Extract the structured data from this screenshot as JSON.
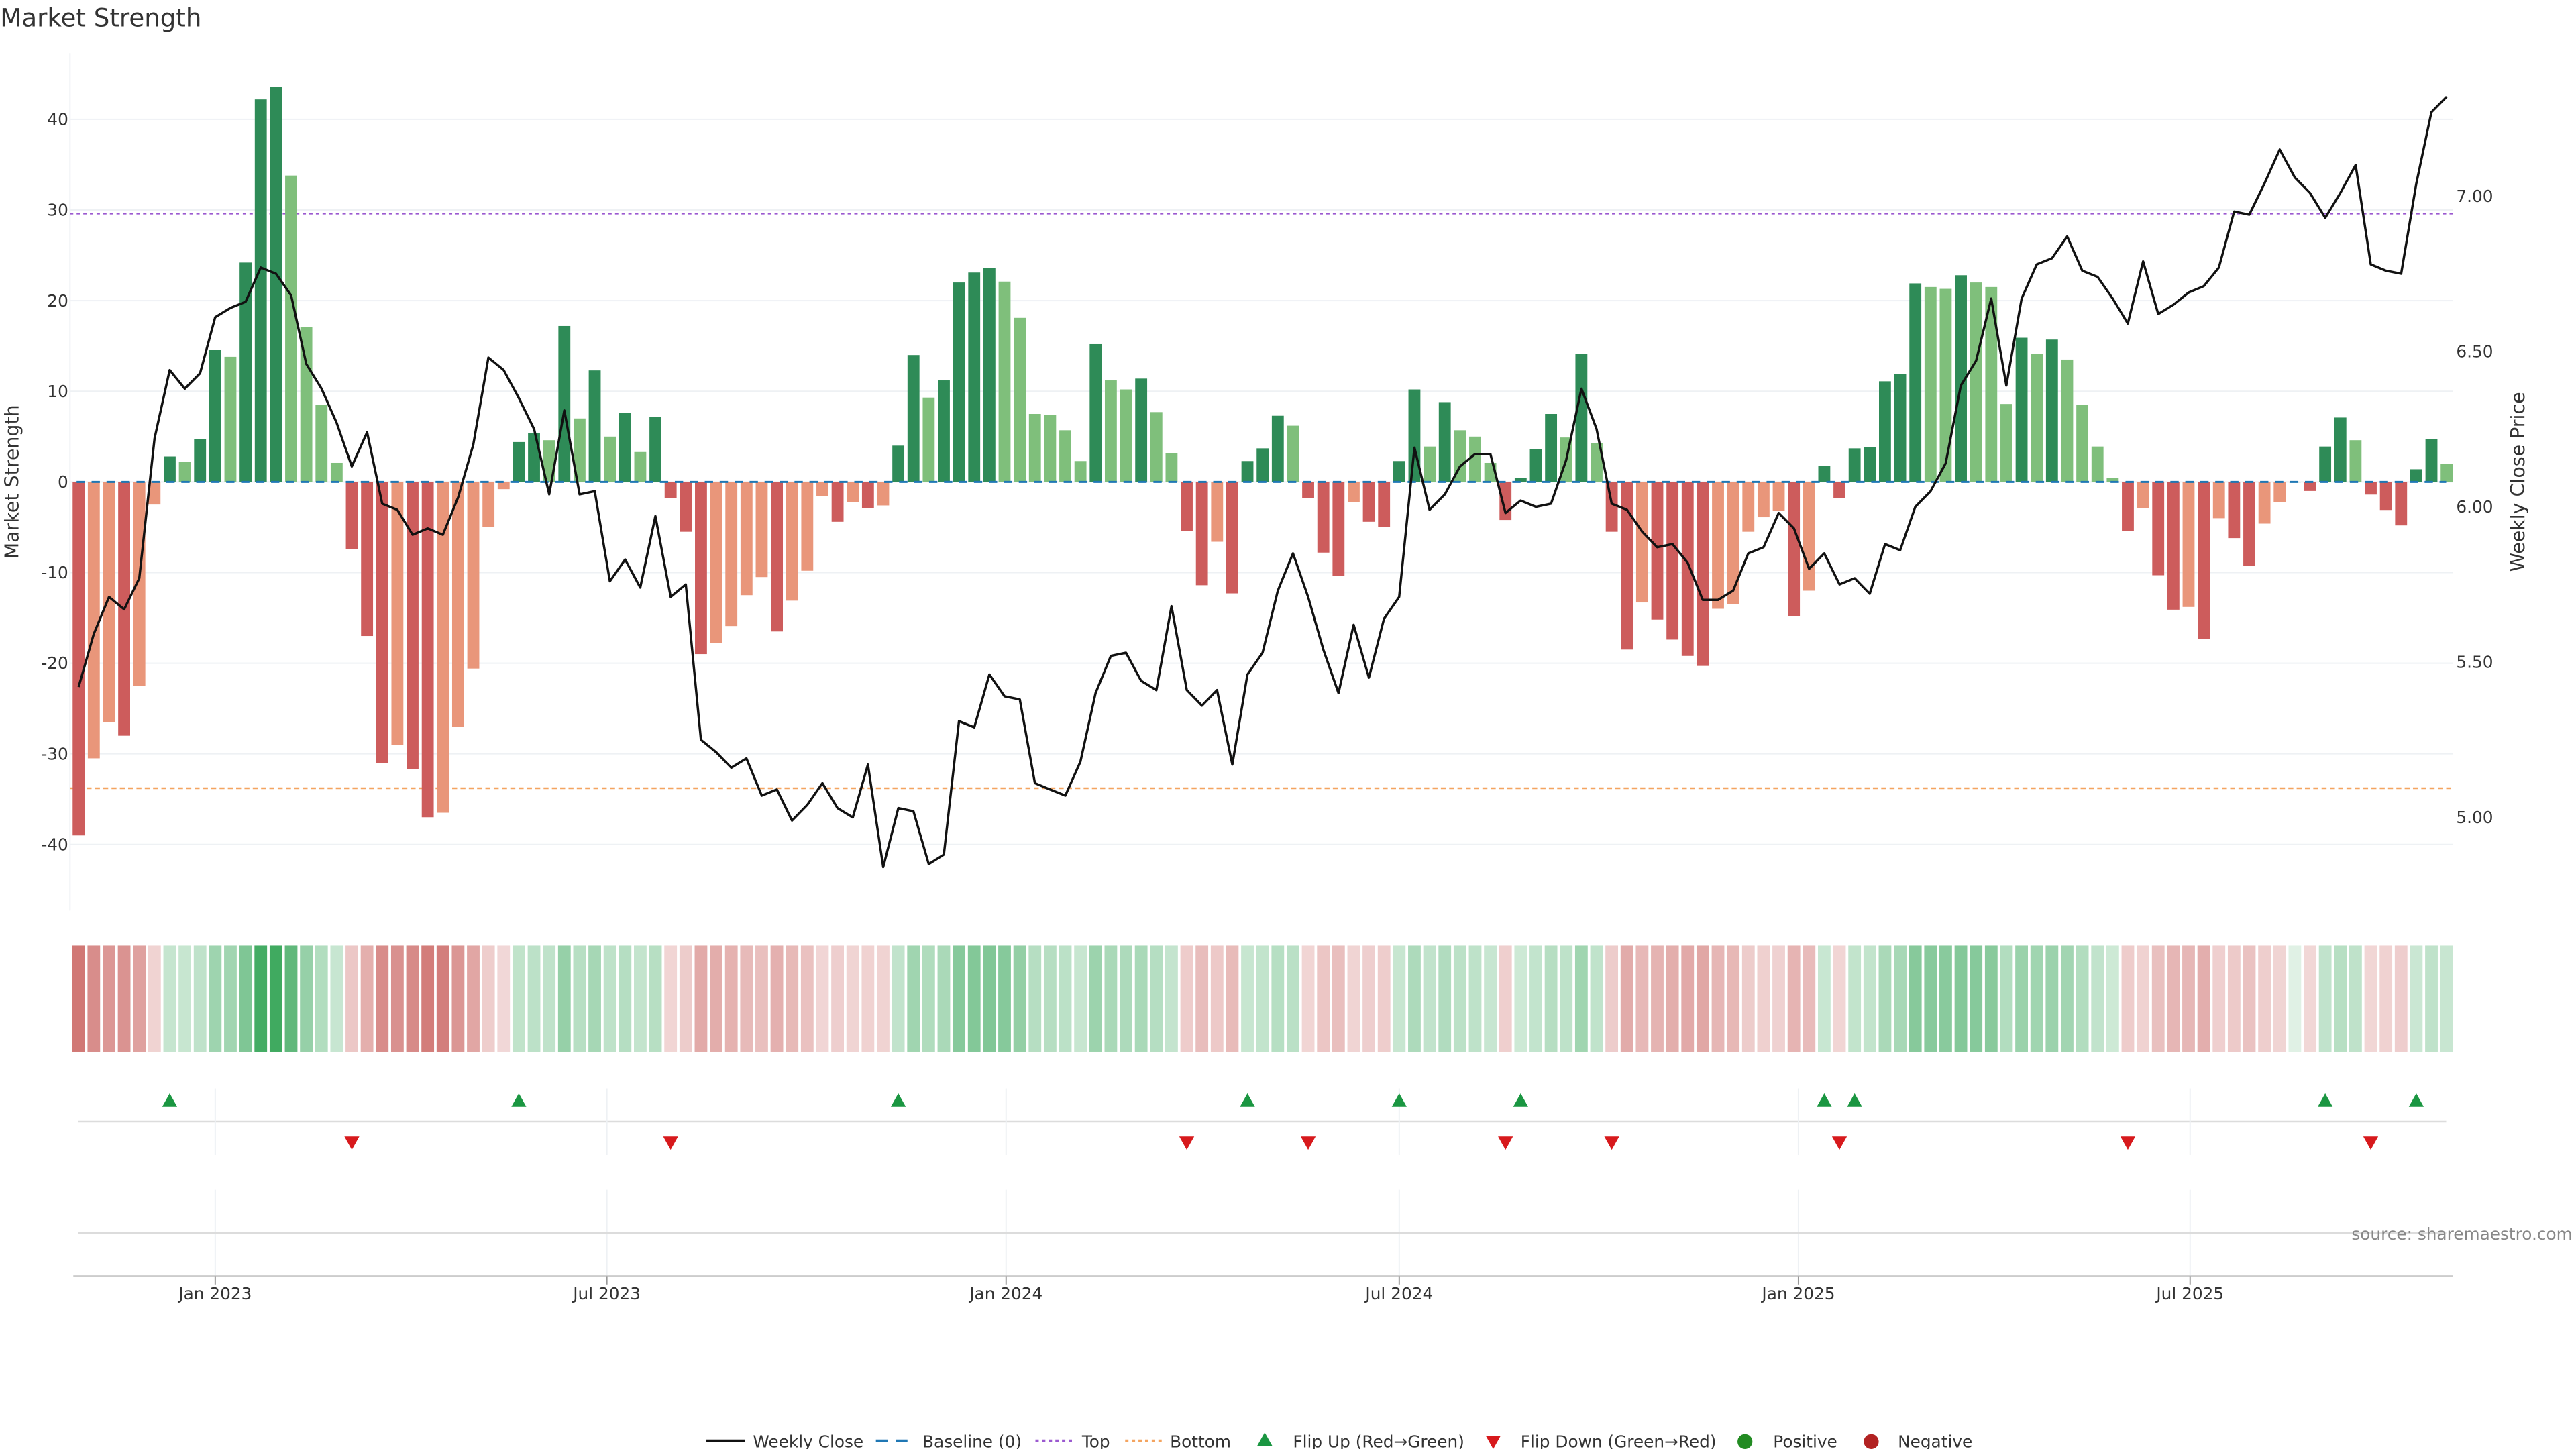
{
  "title": "Market Strength",
  "source": "source: sharemaestro.com",
  "colors": {
    "strong_green": "#2e8b57",
    "weak_green": "#7fbf7b",
    "strong_red": "#cd5c5c",
    "weak_red": "#e9967a",
    "close": "#111111",
    "baseline": "#1f77b4",
    "top": "#9b59d0",
    "bottom": "#f4a460",
    "flip_up": "#1a9641",
    "flip_down": "#d7191c",
    "positive": "#228b22",
    "negative": "#b22222",
    "heat_green": "#31a354",
    "heat_red": "#c9615e"
  },
  "chart_data": {
    "type": "bar",
    "title": "Market Strength",
    "ylabel": "Market Strength",
    "y2label": "Weekly Close Price",
    "ylim": [
      -47.3,
      47.3
    ],
    "y2lim": [
      4.7,
      7.46
    ],
    "yticks": [
      -40,
      -30,
      -20,
      -10,
      0,
      10,
      20,
      30,
      40
    ],
    "y2ticks": [
      "5.00",
      "5.50",
      "6.00",
      "6.50",
      "7.00"
    ],
    "top_level": 29.6,
    "bottom_level": -33.8,
    "xticks": [
      {
        "week": 9.0,
        "label": "Jan 2023"
      },
      {
        "week": 34.8,
        "label": "Jul 2023"
      },
      {
        "week": 61.1,
        "label": "Jan 2024"
      },
      {
        "week": 87.0,
        "label": "Jul 2024"
      },
      {
        "week": 113.3,
        "label": "Jan 2025"
      },
      {
        "week": 139.1,
        "label": "Jul 2025"
      }
    ],
    "strength": [
      -39,
      -30.5,
      -26.5,
      -28,
      -22.5,
      -2.5,
      2.8,
      2.2,
      4.7,
      14.6,
      13.8,
      24.2,
      42.2,
      43.6,
      33.8,
      17.1,
      8.5,
      2.1,
      -7.4,
      -17,
      -31,
      -29,
      -31.7,
      -37,
      -36.5,
      -27,
      -20.6,
      -5,
      -0.8,
      4.4,
      5.4,
      4.6,
      17.2,
      7,
      12.3,
      5,
      7.6,
      3.3,
      7.2,
      -1.8,
      -5.5,
      -19,
      -17.8,
      -15.9,
      -12.5,
      -10.5,
      -16.5,
      -13.1,
      -9.8,
      -1.6,
      -4.4,
      -2.2,
      -2.9,
      -2.6,
      4,
      14,
      9.3,
      11.2,
      22,
      23.1,
      23.6,
      22.1,
      18.1,
      7.5,
      7.4,
      5.7,
      2.3,
      15.2,
      11.2,
      10.2,
      11.4,
      7.7,
      3.2,
      -5.4,
      -11.4,
      -6.6,
      -12.3,
      2.3,
      3.7,
      7.3,
      6.2,
      -1.8,
      -7.8,
      -10.4,
      -2.2,
      -4.4,
      -5,
      2.3,
      10.2,
      3.9,
      8.8,
      5.7,
      5,
      2.1,
      -4.2,
      0.4,
      3.6,
      7.5,
      4.9,
      14.1,
      4.3,
      -5.5,
      -18.5,
      -13.3,
      -15.2,
      -17.4,
      -19.2,
      -20.3,
      -14,
      -13.5,
      -5.5,
      -3.9,
      -3.2,
      -14.8,
      -12,
      1.8,
      -1.8,
      3.7,
      3.8,
      11.1,
      11.9,
      21.9,
      21.5,
      21.3,
      22.8,
      22,
      21.5,
      8.6,
      15.9,
      14.1,
      15.7,
      13.5,
      8.5,
      3.9,
      0.4,
      -5.4,
      -2.9,
      -10.3,
      -14.1,
      -13.8,
      -17.3,
      -4,
      -6.2,
      -9.3,
      -4.6,
      -2.2,
      0,
      -1,
      3.9,
      7.1,
      4.6,
      -1.4,
      -3.1,
      -4.8,
      1.4,
      4.7,
      2
    ],
    "weekly_close": [
      5.42,
      5.59,
      5.71,
      5.67,
      5.77,
      6.22,
      6.44,
      6.38,
      6.43,
      6.61,
      6.64,
      6.66,
      6.77,
      6.75,
      6.68,
      6.46,
      6.38,
      6.27,
      6.13,
      6.24,
      6.01,
      5.99,
      5.91,
      5.93,
      5.91,
      6.03,
      6.2,
      6.48,
      6.44,
      6.35,
      6.25,
      6.04,
      6.31,
      6.04,
      6.05,
      5.76,
      5.83,
      5.74,
      5.97,
      5.71,
      5.75,
      5.25,
      5.21,
      5.16,
      5.19,
      5.07,
      5.09,
      4.99,
      5.04,
      5.11,
      5.03,
      5.0,
      5.17,
      4.84,
      5.03,
      5.02,
      4.85,
      4.88,
      5.31,
      5.29,
      5.46,
      5.39,
      5.38,
      5.11,
      5.09,
      5.07,
      5.18,
      5.4,
      5.52,
      5.53,
      5.44,
      5.41,
      5.68,
      5.41,
      5.36,
      5.41,
      5.17,
      5.46,
      5.53,
      5.73,
      5.85,
      5.71,
      5.54,
      5.4,
      5.62,
      5.45,
      5.64,
      5.71,
      6.19,
      5.99,
      6.04,
      6.13,
      6.17,
      6.17,
      5.98,
      6.02,
      6.0,
      6.01,
      6.15,
      6.38,
      6.25,
      6.01,
      5.99,
      5.92,
      5.87,
      5.88,
      5.82,
      5.7,
      5.7,
      5.73,
      5.85,
      5.87,
      5.98,
      5.93,
      5.8,
      5.85,
      5.75,
      5.77,
      5.72,
      5.88,
      5.86,
      6.0,
      6.05,
      6.14,
      6.39,
      6.47,
      6.67,
      6.39,
      6.67,
      6.78,
      6.8,
      6.87,
      6.76,
      6.74,
      6.67,
      6.59,
      6.79,
      6.62,
      6.65,
      6.69,
      6.71,
      6.77,
      6.95,
      6.94,
      7.04,
      7.15,
      7.06,
      7.01,
      6.93,
      7.01,
      7.1,
      6.78,
      6.76,
      6.75,
      7.04,
      7.27,
      7.32
    ],
    "flip_up_weeks": [
      6,
      29,
      54,
      77,
      87,
      95,
      115,
      117,
      148,
      154
    ],
    "flip_down_weeks": [
      18,
      39,
      73,
      81,
      94,
      101,
      116,
      135,
      151
    ],
    "legend_position": "bottom-center",
    "legend": {
      "weekly_close": "Weekly Close",
      "baseline": "Baseline (0)",
      "top": "Top",
      "bottom": "Bottom",
      "flip_up": "Flip Up (Red→Green)",
      "flip_down": "Flip Down (Green→Red)",
      "positive": "Positive",
      "negative": "Negative"
    }
  }
}
